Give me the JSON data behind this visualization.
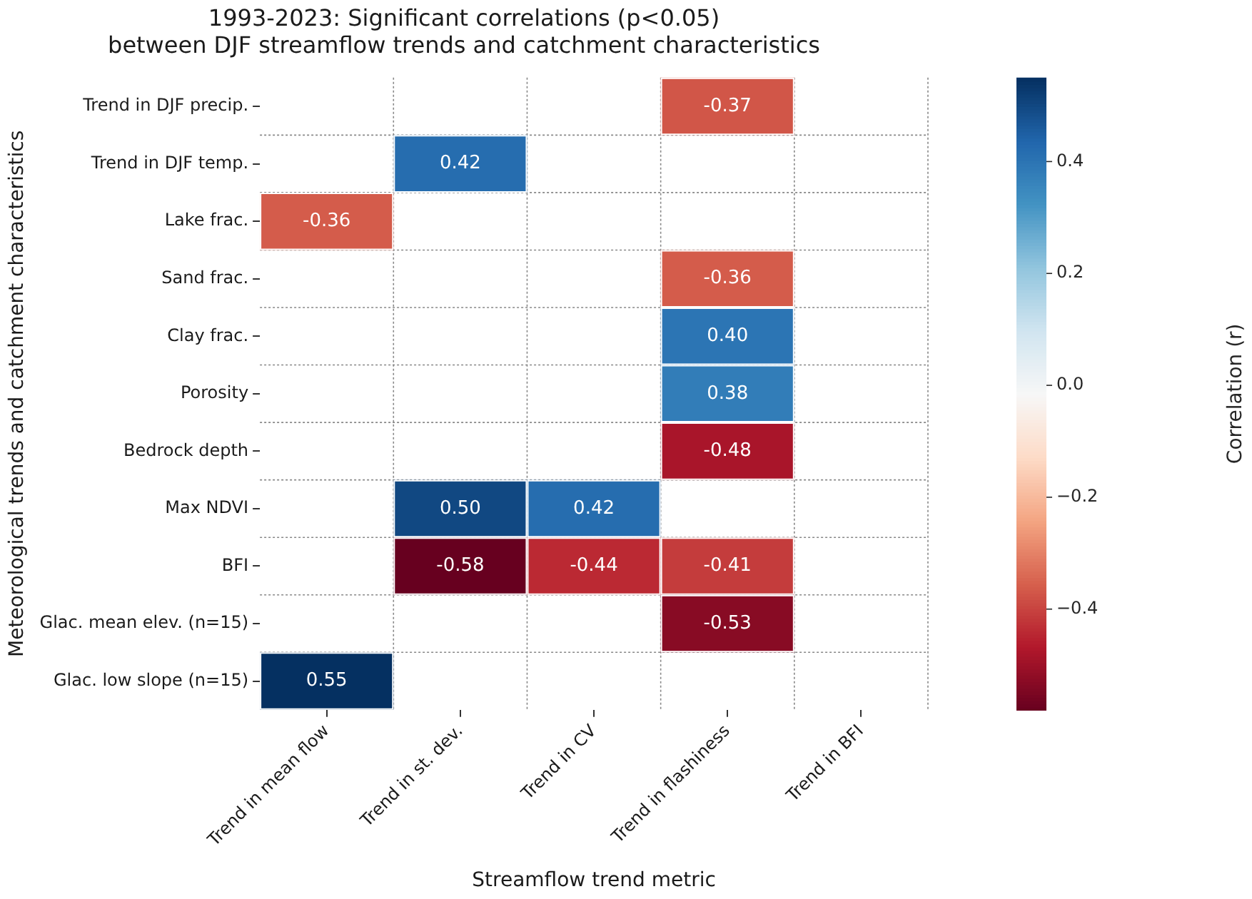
{
  "chart_data": {
    "type": "heatmap",
    "title": "1993-2023: Significant correlations (p<0.05)\nbetween DJF streamflow trends and catchment characteristics",
    "xlabel": "Streamflow trend metric",
    "ylabel": "Meteorological trends and catchment characteristics",
    "clabel": "Correlation (r)",
    "categories": [
      "Trend in mean flow",
      "Trend in st. dev.",
      "Trend in CV",
      "Trend in flashiness",
      "Trend in BFI"
    ],
    "y_categories": [
      "Trend in DJF precip.",
      "Trend in DJF temp.",
      "Lake frac.",
      "Sand frac.",
      "Clay frac.",
      "Porosity",
      "Bedrock depth",
      "Max NDVI",
      "BFI",
      "Glac. mean elev. (n=15)",
      "Glac. low slope (n=15)"
    ],
    "cells": [
      [
        null,
        null,
        null,
        -0.37,
        null
      ],
      [
        null,
        0.42,
        null,
        null,
        null
      ],
      [
        -0.36,
        null,
        null,
        null,
        null
      ],
      [
        null,
        null,
        null,
        -0.36,
        null
      ],
      [
        null,
        null,
        null,
        0.4,
        null
      ],
      [
        null,
        null,
        null,
        0.38,
        null
      ],
      [
        null,
        null,
        null,
        -0.48,
        null
      ],
      [
        null,
        0.5,
        0.42,
        null,
        null
      ],
      [
        null,
        -0.58,
        -0.44,
        -0.41,
        null
      ],
      [
        null,
        null,
        null,
        -0.53,
        null
      ],
      [
        0.55,
        null,
        null,
        null,
        null
      ]
    ],
    "cell_labels": [
      [
        null,
        null,
        null,
        "-0.37",
        null
      ],
      [
        null,
        "0.42",
        null,
        null,
        null
      ],
      [
        "-0.36",
        null,
        null,
        null,
        null
      ],
      [
        null,
        null,
        null,
        "-0.36",
        null
      ],
      [
        null,
        null,
        null,
        "0.40",
        null
      ],
      [
        null,
        null,
        null,
        "0.38",
        null
      ],
      [
        null,
        null,
        null,
        "-0.48",
        null
      ],
      [
        null,
        "0.50",
        "0.42",
        null,
        null
      ],
      [
        null,
        "-0.58",
        "-0.44",
        "-0.41",
        null
      ],
      [
        null,
        null,
        null,
        "-0.53",
        null
      ],
      [
        "0.55",
        null,
        null,
        null,
        null
      ]
    ],
    "clim": [
      -0.58,
      0.55
    ],
    "cticks": [
      {
        "value": -0.4,
        "label": "−0.4"
      },
      {
        "value": -0.2,
        "label": "−0.2"
      },
      {
        "value": 0,
        "label": "0.0"
      },
      {
        "value": 0.2,
        "label": "0.2"
      },
      {
        "value": 0.4,
        "label": "0.4"
      }
    ],
    "data_labels": true,
    "grid": true,
    "legend": false
  }
}
